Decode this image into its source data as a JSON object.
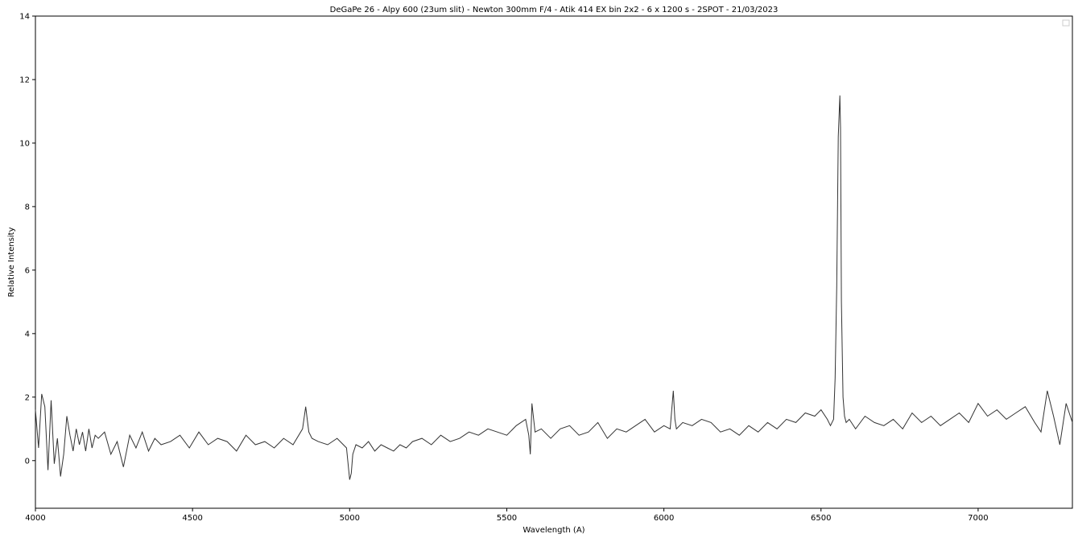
{
  "chart_data": {
    "type": "line",
    "title": "DeGaPe 26 - Alpy 600 (23um slit) - Newton 300mm F/4 - Atik 414 EX bin 2x2 - 6 x 1200 s - 2SPOT - 21/03/2023",
    "xlabel": "Wavelength (A)",
    "ylabel": "Relative Intensity",
    "xlim": [
      4000,
      7300
    ],
    "ylim": [
      -1.5,
      14
    ],
    "x_ticks": [
      4000,
      4500,
      5000,
      5500,
      6000,
      6500,
      7000
    ],
    "y_ticks": [
      0,
      2,
      4,
      6,
      8,
      10,
      12,
      14
    ],
    "grid": false,
    "legend": "top-right (empty box)",
    "line_color": "#333333",
    "series": [
      {
        "x": [
          4000,
          4010,
          4020,
          4030,
          4040,
          4050,
          4060,
          4070,
          4080,
          4090,
          4100,
          4110,
          4120,
          4130,
          4140,
          4150,
          4160,
          4170,
          4180,
          4190,
          4200,
          4220,
          4240,
          4260,
          4280,
          4300,
          4320,
          4340,
          4360,
          4380,
          4400,
          4430,
          4460,
          4490,
          4520,
          4550,
          4580,
          4610,
          4640,
          4670,
          4700,
          4730,
          4760,
          4790,
          4820,
          4850,
          4860,
          4865,
          4870,
          4880,
          4900,
          4930,
          4960,
          4990,
          5000,
          5005,
          5010,
          5020,
          5040,
          5060,
          5080,
          5100,
          5120,
          5140,
          5160,
          5180,
          5200,
          5230,
          5260,
          5290,
          5320,
          5350,
          5380,
          5410,
          5440,
          5470,
          5500,
          5530,
          5560,
          5570,
          5575,
          5580,
          5590,
          5610,
          5640,
          5670,
          5700,
          5730,
          5760,
          5790,
          5820,
          5850,
          5880,
          5910,
          5940,
          5970,
          6000,
          6020,
          6030,
          6035,
          6040,
          6060,
          6090,
          6120,
          6150,
          6180,
          6210,
          6240,
          6270,
          6300,
          6330,
          6360,
          6390,
          6420,
          6450,
          6480,
          6500,
          6520,
          6530,
          6540,
          6545,
          6550,
          6555,
          6560,
          6562,
          6565,
          6570,
          6575,
          6580,
          6590,
          6610,
          6640,
          6670,
          6700,
          6730,
          6760,
          6790,
          6820,
          6850,
          6880,
          6910,
          6940,
          6970,
          7000,
          7030,
          7060,
          7090,
          7120,
          7150,
          7180,
          7200,
          7220,
          7240,
          7260,
          7280,
          7300
        ],
        "y": [
          1.6,
          0.4,
          2.1,
          1.7,
          -0.3,
          1.9,
          -0.1,
          0.7,
          -0.5,
          0.2,
          1.4,
          0.8,
          0.3,
          1.0,
          0.5,
          0.9,
          0.3,
          1.0,
          0.4,
          0.8,
          0.7,
          0.9,
          0.2,
          0.6,
          -0.2,
          0.8,
          0.4,
          0.9,
          0.3,
          0.7,
          0.5,
          0.6,
          0.8,
          0.4,
          0.9,
          0.5,
          0.7,
          0.6,
          0.3,
          0.8,
          0.5,
          0.6,
          0.4,
          0.7,
          0.5,
          1.0,
          1.7,
          1.3,
          0.9,
          0.7,
          0.6,
          0.5,
          0.7,
          0.4,
          -0.6,
          -0.4,
          0.2,
          0.5,
          0.4,
          0.6,
          0.3,
          0.5,
          0.4,
          0.3,
          0.5,
          0.4,
          0.6,
          0.7,
          0.5,
          0.8,
          0.6,
          0.7,
          0.9,
          0.8,
          1.0,
          0.9,
          0.8,
          1.1,
          1.3,
          0.8,
          0.2,
          1.8,
          0.9,
          1.0,
          0.7,
          1.0,
          1.1,
          0.8,
          0.9,
          1.2,
          0.7,
          1.0,
          0.9,
          1.1,
          1.3,
          0.9,
          1.1,
          1.0,
          2.2,
          1.3,
          1.0,
          1.2,
          1.1,
          1.3,
          1.2,
          0.9,
          1.0,
          0.8,
          1.1,
          0.9,
          1.2,
          1.0,
          1.3,
          1.2,
          1.5,
          1.4,
          1.6,
          1.3,
          1.1,
          1.3,
          2.6,
          5.5,
          10.2,
          11.5,
          10.5,
          5.0,
          2.0,
          1.4,
          1.2,
          1.3,
          1.0,
          1.4,
          1.2,
          1.1,
          1.3,
          1.0,
          1.5,
          1.2,
          1.4,
          1.1,
          1.3,
          1.5,
          1.2,
          1.8,
          1.4,
          1.6,
          1.3,
          1.5,
          1.7,
          1.2,
          0.9,
          2.2,
          1.4,
          0.5,
          1.8,
          1.2
        ]
      }
    ]
  }
}
